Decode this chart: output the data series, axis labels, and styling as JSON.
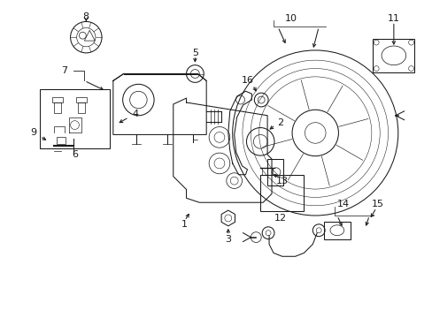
{
  "background_color": "#ffffff",
  "line_color": "#1a1a1a",
  "fig_width": 4.89,
  "fig_height": 3.6,
  "dpi": 100,
  "label_fontsize": 7.5,
  "lw": 0.75
}
